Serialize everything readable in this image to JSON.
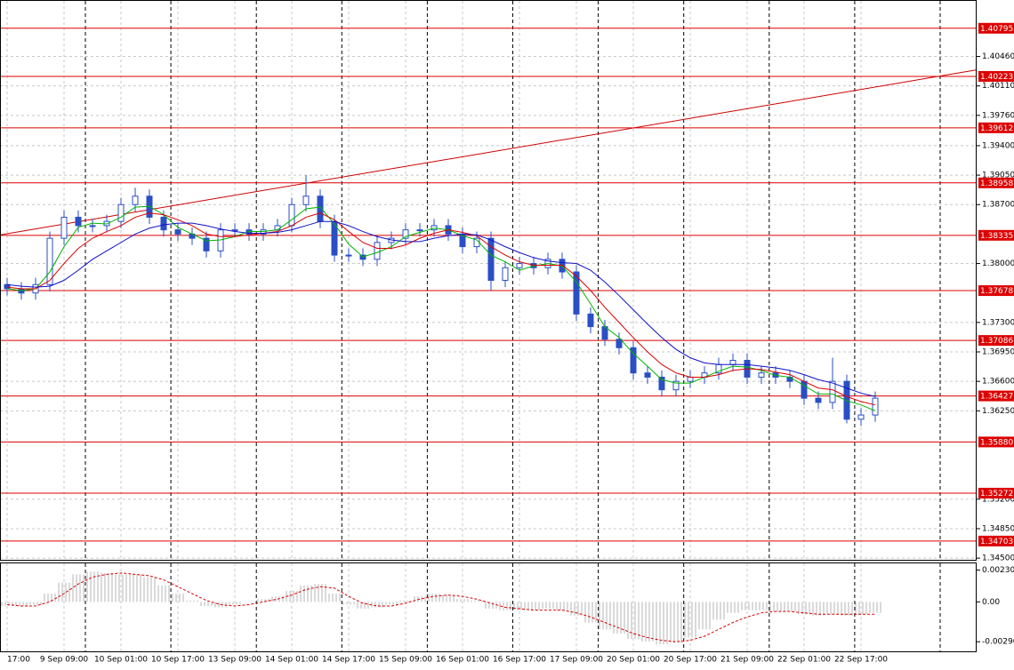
{
  "chart_data": {
    "type": "candlestick",
    "categories": [
      "17:00",
      null,
      null,
      null,
      "9 Sep 09:00",
      null,
      null,
      null,
      "10 Sep 01:00",
      null,
      null,
      null,
      "10 Sep 17:00",
      null,
      null,
      null,
      "13 Sep 09:00",
      null,
      null,
      null,
      "14 Sep 01:00",
      null,
      null,
      null,
      "14 Sep 17:00",
      null,
      null,
      null,
      "15 Sep 09:00",
      null,
      null,
      null,
      "16 Sep 01:00",
      null,
      null,
      null,
      "16 Sep 17:00",
      null,
      null,
      null,
      "17 Sep 09:00",
      null,
      null,
      null,
      "20 Sep 01:00",
      null,
      null,
      null,
      "20 Sep 17:00",
      null,
      null,
      null,
      "21 Sep 09:00",
      null,
      null,
      null,
      "22 Sep 01:00",
      null,
      null,
      null,
      "22 Sep 17:00",
      null
    ],
    "open": [
      1.3775,
      1.377,
      1.3765,
      1.3775,
      1.383,
      1.3855,
      1.3845,
      1.3845,
      1.385,
      1.387,
      1.388,
      1.3855,
      1.384,
      1.3835,
      1.383,
      1.3815,
      1.384,
      1.384,
      1.3835,
      1.384,
      1.3845,
      1.387,
      1.388,
      1.385,
      1.381,
      1.381,
      1.3805,
      1.3825,
      1.383,
      1.384,
      1.384,
      1.3845,
      1.3835,
      1.382,
      1.383,
      1.378,
      1.3795,
      1.38,
      1.3795,
      1.3805,
      1.379,
      1.374,
      1.3725,
      1.371,
      1.37,
      1.367,
      1.3665,
      1.365,
      1.366,
      1.3665,
      1.367,
      1.368,
      1.3685,
      1.3665,
      1.367,
      1.3665,
      1.366,
      1.364,
      1.3635,
      1.366,
      1.3615,
      1.362
    ],
    "high": [
      1.3783,
      1.3778,
      1.3783,
      1.3838,
      1.3863,
      1.3863,
      1.3853,
      1.3858,
      1.3878,
      1.389,
      1.3888,
      1.3863,
      1.3848,
      1.3843,
      1.3838,
      1.3848,
      1.3848,
      1.3848,
      1.3848,
      1.3853,
      1.3878,
      1.3905,
      1.3888,
      1.3858,
      1.3818,
      1.3818,
      1.3833,
      1.3838,
      1.3848,
      1.3848,
      1.3853,
      1.3853,
      1.3843,
      1.3838,
      1.3838,
      1.3803,
      1.3808,
      1.3808,
      1.3813,
      1.3813,
      1.3798,
      1.3748,
      1.3733,
      1.3718,
      1.3708,
      1.3678,
      1.3673,
      1.3668,
      1.3673,
      1.3678,
      1.3688,
      1.3693,
      1.3693,
      1.3678,
      1.3678,
      1.3673,
      1.3668,
      1.3648,
      1.3688,
      1.3668,
      1.3628,
      1.3648
    ],
    "low": [
      1.3762,
      1.3757,
      1.3757,
      1.3767,
      1.3822,
      1.3837,
      1.3837,
      1.3837,
      1.3842,
      1.3862,
      1.3847,
      1.3832,
      1.3827,
      1.3822,
      1.3807,
      1.3807,
      1.3832,
      1.3827,
      1.3827,
      1.3832,
      1.3837,
      1.3862,
      1.3842,
      1.3802,
      1.3802,
      1.3797,
      1.3797,
      1.3817,
      1.3822,
      1.3832,
      1.3832,
      1.3827,
      1.3812,
      1.3812,
      1.3768,
      1.3772,
      1.3787,
      1.3787,
      1.3787,
      1.3782,
      1.3732,
      1.3717,
      1.3702,
      1.3692,
      1.3662,
      1.3657,
      1.3642,
      1.3642,
      1.3652,
      1.3657,
      1.3662,
      1.3672,
      1.3657,
      1.3657,
      1.3657,
      1.3652,
      1.3632,
      1.3627,
      1.3627,
      1.361,
      1.3607,
      1.3612
    ],
    "close": [
      1.377,
      1.3765,
      1.3775,
      1.383,
      1.3855,
      1.3845,
      1.3845,
      1.385,
      1.387,
      1.388,
      1.3855,
      1.384,
      1.3835,
      1.383,
      1.3815,
      1.384,
      1.384,
      1.3835,
      1.384,
      1.3845,
      1.387,
      1.388,
      1.385,
      1.381,
      1.381,
      1.3805,
      1.3825,
      1.383,
      1.384,
      1.384,
      1.3845,
      1.3835,
      1.382,
      1.383,
      1.378,
      1.3795,
      1.38,
      1.3795,
      1.3805,
      1.379,
      1.374,
      1.3725,
      1.371,
      1.37,
      1.367,
      1.3665,
      1.365,
      1.366,
      1.3665,
      1.367,
      1.368,
      1.3685,
      1.3665,
      1.367,
      1.3665,
      1.366,
      1.364,
      1.3635,
      1.366,
      1.3615,
      1.362,
      1.364
    ],
    "color": "#2a4fc4",
    "lines": [
      {
        "color": "#00b400",
        "values": [
          1.377,
          1.3768,
          1.377,
          1.379,
          1.382,
          1.3843,
          1.3848,
          1.3847,
          1.3855,
          1.3867,
          1.3868,
          1.3858,
          1.3843,
          1.3835,
          1.3827,
          1.3828,
          1.3832,
          1.3838,
          1.3838,
          1.384,
          1.3852,
          1.3865,
          1.3867,
          1.3847,
          1.3823,
          1.3808,
          1.3813,
          1.382,
          1.3832,
          1.3837,
          1.3842,
          1.384,
          1.3833,
          1.3828,
          1.381,
          1.3802,
          1.3792,
          1.3797,
          1.38,
          1.3797,
          1.3778,
          1.3752,
          1.3725,
          1.3712,
          1.3693,
          1.3678,
          1.3662,
          1.3658,
          1.3658,
          1.3665,
          1.3672,
          1.3678,
          1.3677,
          1.3673,
          1.3667,
          1.3665,
          1.3655,
          1.3645,
          1.3645,
          1.3637,
          1.3632,
          1.3625
        ]
      },
      {
        "color": "#dd0000",
        "values": [
          1.3772,
          1.377,
          1.377,
          1.378,
          1.38,
          1.3818,
          1.383,
          1.3838,
          1.3845,
          1.3855,
          1.386,
          1.3858,
          1.3852,
          1.3845,
          1.3835,
          1.3832,
          1.3832,
          1.3834,
          1.3836,
          1.3838,
          1.3845,
          1.3855,
          1.386,
          1.3852,
          1.3838,
          1.3825,
          1.3818,
          1.3818,
          1.3822,
          1.383,
          1.3836,
          1.384,
          1.3837,
          1.3833,
          1.382,
          1.381,
          1.3802,
          1.3798,
          1.3798,
          1.3798,
          1.3785,
          1.3768,
          1.3748,
          1.373,
          1.3712,
          1.3695,
          1.368,
          1.367,
          1.3665,
          1.3665,
          1.3668,
          1.3673,
          1.3675,
          1.3674,
          1.3671,
          1.3668,
          1.366,
          1.3652,
          1.365,
          1.3642,
          1.3636,
          1.3632
        ]
      },
      {
        "color": "#1010cc",
        "values": [
          1.3775,
          1.3773,
          1.3772,
          1.3773,
          1.378,
          1.3792,
          1.3805,
          1.3815,
          1.3825,
          1.3835,
          1.3842,
          1.3846,
          1.3848,
          1.3848,
          1.3845,
          1.3841,
          1.3838,
          1.3836,
          1.3836,
          1.3837,
          1.384,
          1.3845,
          1.385,
          1.385,
          1.3845,
          1.3838,
          1.3832,
          1.3828,
          1.3826,
          1.3826,
          1.383,
          1.3833,
          1.3835,
          1.3834,
          1.3828,
          1.382,
          1.3813,
          1.3807,
          1.3803,
          1.3801,
          1.38,
          1.3792,
          1.3778,
          1.3762,
          1.3745,
          1.3728,
          1.3712,
          1.3698,
          1.3688,
          1.3682,
          1.368,
          1.368,
          1.368,
          1.3678,
          1.3676,
          1.3673,
          1.3668,
          1.3662,
          1.3658,
          1.3652,
          1.3646,
          1.3642
        ]
      }
    ],
    "trendline": {
      "color": "#cc0000",
      "values": [
        1.3834,
        1.403
      ]
    },
    "levels": {
      "color": "#dd0000",
      "values": [
        1.40795,
        1.40223,
        1.39612,
        1.38958,
        1.38335,
        1.37678,
        1.37086,
        1.36427,
        {
          "value": 1.3588,
          "label": "1.35880"
        },
        1.35272,
        1.34703
      ]
    },
    "ylim": [
      1.3448,
      1.4112
    ],
    "yticks": [
      {
        "value": 1.4046,
        "label": "1.40460"
      },
      {
        "value": 1.4011,
        "label": "1.40110"
      },
      {
        "value": 1.3976,
        "label": "1.39760"
      },
      {
        "value": 1.394,
        "label": "1.39400"
      },
      {
        "value": 1.3905,
        "label": "1.39050"
      },
      {
        "value": 1.387,
        "label": "1.38700"
      },
      {
        "value": 1.38,
        "label": "1.38000"
      },
      {
        "value": 1.373,
        "label": "1.37300"
      },
      {
        "value": 1.3695,
        "label": "1.36950"
      },
      {
        "value": 1.366,
        "label": "1.36600"
      },
      {
        "value": 1.3625,
        "label": "1.36250"
      },
      {
        "value": 1.352,
        "label": "1.35200"
      },
      {
        "value": 1.3485,
        "label": "1.34850"
      },
      {
        "value": 1.345,
        "label": "1.34500"
      }
    ],
    "grid": true,
    "indicator": {
      "type": "histogram",
      "color": "#b4b4b4",
      "signal_color": "#dd0000",
      "values": [
        -0.0003,
        -0.0003,
        -0.0002,
        0.0006,
        0.0014,
        0.002,
        0.0022,
        0.0021,
        0.002,
        0.002,
        0.0018,
        0.0012,
        0.0006,
        0.0001,
        -0.0003,
        -0.0004,
        -0.0002,
        0.0,
        0.0002,
        0.0004,
        0.0008,
        0.0012,
        0.0013,
        0.0006,
        -0.0002,
        -0.0005,
        -0.0004,
        -0.0002,
        0.0001,
        0.0004,
        0.0006,
        0.0005,
        0.0002,
        0.0001,
        -0.0005,
        -0.0006,
        -0.0006,
        -0.0006,
        -0.0005,
        -0.0006,
        -0.001,
        -0.0015,
        -0.002,
        -0.0023,
        -0.0027,
        -0.0029,
        -0.0031,
        -0.003,
        -0.0026,
        -0.002,
        -0.0013,
        -0.0008,
        -0.0006,
        -0.0006,
        -0.0007,
        -0.0007,
        -0.0009,
        -0.001,
        -0.0009,
        -0.001,
        -0.0009,
        -0.0008
      ],
      "signal": [
        -0.0002,
        -0.0003,
        -0.0003,
        0.0,
        0.0006,
        0.0013,
        0.0018,
        0.002,
        0.0021,
        0.002,
        0.0019,
        0.0016,
        0.0011,
        0.0006,
        0.0001,
        -0.0002,
        -0.0003,
        -0.0002,
        0.0,
        0.0002,
        0.0005,
        0.0009,
        0.0011,
        0.001,
        0.0004,
        -0.0001,
        -0.0003,
        -0.0003,
        -0.0001,
        0.0002,
        0.0004,
        0.0005,
        0.0004,
        0.0002,
        -0.0001,
        -0.0004,
        -0.0005,
        -0.0006,
        -0.0006,
        -0.0006,
        -0.0008,
        -0.0011,
        -0.0015,
        -0.0019,
        -0.0023,
        -0.0026,
        -0.0028,
        -0.0029,
        -0.0028,
        -0.0025,
        -0.002,
        -0.0015,
        -0.0011,
        -0.0008,
        -0.0007,
        -0.0007,
        -0.0008,
        -0.0009,
        -0.0009,
        -0.0009,
        -0.0009,
        -0.0009
      ],
      "ylim": [
        -0.0036,
        0.0028
      ],
      "yticks": [
        {
          "value": 0.002308,
          "label": "0.002308"
        },
        {
          "value": 0,
          "label": "0.00"
        },
        {
          "value": -0.0029,
          "label": "-0.00290"
        }
      ]
    }
  }
}
